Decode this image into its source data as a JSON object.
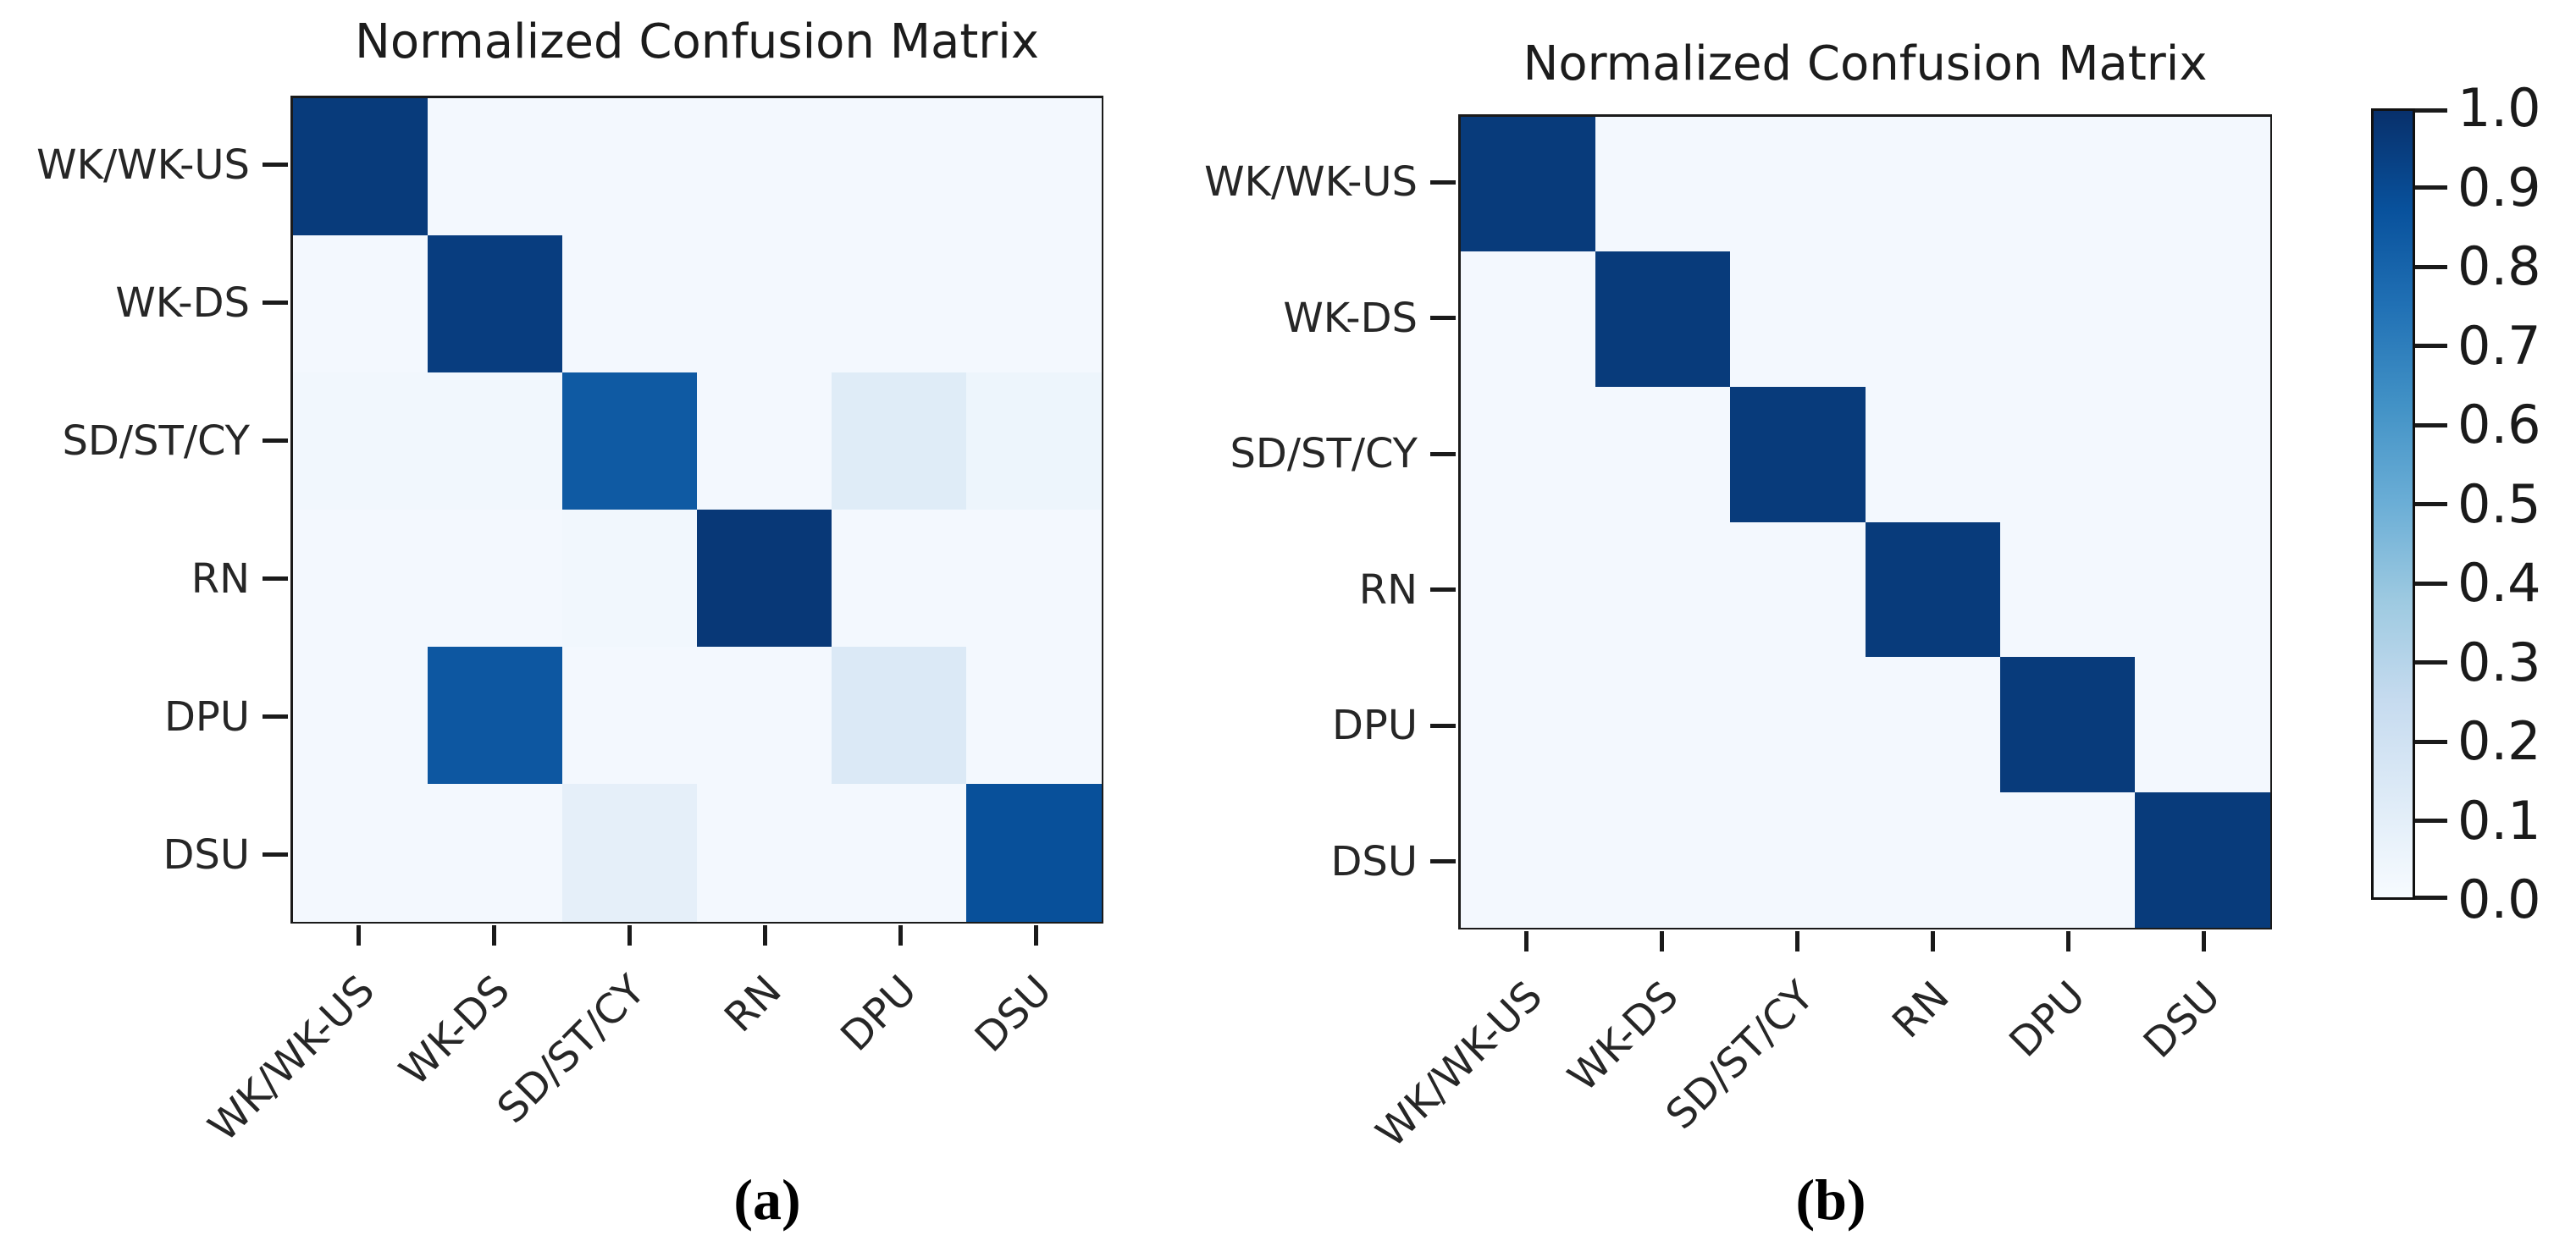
{
  "figure_title": "Normalized Confusion Matrix",
  "chart_data": [
    {
      "type": "heatmap",
      "title": "Normalized Confusion Matrix",
      "caption": "(a)",
      "x_labels": [
        "WK/WK-US",
        "WK-DS",
        "SD/ST/CY",
        "RN",
        "DPU",
        "DSU"
      ],
      "y_labels": [
        "WK/WK-US",
        "WK-DS",
        "SD/ST/CY",
        "RN",
        "DPU",
        "DSU"
      ],
      "values": [
        [
          0.96,
          0.02,
          0.02,
          0.02,
          0.02,
          0.02
        ],
        [
          0.02,
          0.95,
          0.02,
          0.02,
          0.02,
          0.02
        ],
        [
          0.03,
          0.03,
          0.84,
          0.02,
          0.12,
          0.05
        ],
        [
          0.02,
          0.02,
          0.03,
          0.97,
          0.02,
          0.02
        ],
        [
          0.02,
          0.85,
          0.02,
          0.02,
          0.14,
          0.02
        ],
        [
          0.02,
          0.02,
          0.09,
          0.02,
          0.02,
          0.88
        ]
      ],
      "vmin": 0.0,
      "vmax": 1.0,
      "colormap": "Blues",
      "grid": false,
      "legend_position": "shared-right-colorbar"
    },
    {
      "type": "heatmap",
      "title": "Normalized Confusion Matrix",
      "caption": "(b)",
      "x_labels": [
        "WK/WK-US",
        "WK-DS",
        "SD/ST/CY",
        "RN",
        "DPU",
        "DSU"
      ],
      "y_labels": [
        "WK/WK-US",
        "WK-DS",
        "SD/ST/CY",
        "RN",
        "DPU",
        "DSU"
      ],
      "values": [
        [
          0.96,
          0.02,
          0.02,
          0.02,
          0.02,
          0.02
        ],
        [
          0.02,
          0.96,
          0.02,
          0.02,
          0.02,
          0.02
        ],
        [
          0.02,
          0.02,
          0.96,
          0.02,
          0.02,
          0.02
        ],
        [
          0.02,
          0.02,
          0.02,
          0.96,
          0.02,
          0.02
        ],
        [
          0.02,
          0.02,
          0.02,
          0.02,
          0.96,
          0.02
        ],
        [
          0.02,
          0.02,
          0.02,
          0.02,
          0.02,
          0.96
        ]
      ],
      "vmin": 0.0,
      "vmax": 1.0,
      "colormap": "Blues",
      "grid": false,
      "legend_position": "shared-right-colorbar"
    }
  ],
  "colorbar": {
    "tick_labels": [
      "1.0",
      "0.9",
      "0.8",
      "0.7",
      "0.6",
      "0.5",
      "0.4",
      "0.3",
      "0.2",
      "0.1",
      "0.0"
    ],
    "range": [
      0.0,
      1.0
    ]
  },
  "colors": {
    "colormap_stops_low_to_high": [
      "#f7fbff",
      "#deebf7",
      "#c6dbef",
      "#9ecae1",
      "#6baed6",
      "#4292c6",
      "#2171b5",
      "#08519c",
      "#08306b"
    ],
    "text": "#262626",
    "title_text": "#1c1c1c",
    "spine": "#1a1a1a",
    "background": "#ffffff"
  }
}
